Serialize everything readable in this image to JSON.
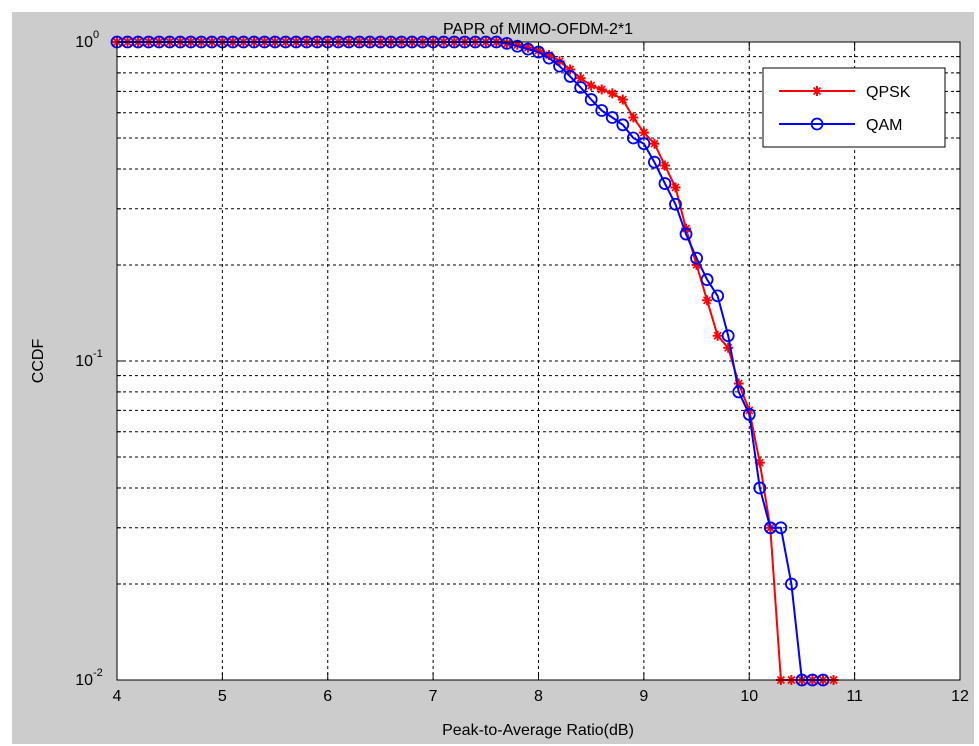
{
  "chart_data": {
    "type": "line",
    "title": "PAPR of MIMO-OFDM-2*1",
    "xlabel": "Peak-to-Average Ratio(dB)",
    "ylabel": "CCDF",
    "xlim": [
      4,
      12
    ],
    "ylim": [
      0.01,
      1
    ],
    "yscale": "log",
    "grid": true,
    "legend_position": "top-right",
    "x_ticks": [
      "4",
      "5",
      "6",
      "7",
      "8",
      "9",
      "10",
      "11",
      "12"
    ],
    "y_ticks": [
      {
        "base": "10",
        "exp": "0",
        "value": 1
      },
      {
        "base": "10",
        "exp": "-1",
        "value": 0.1
      },
      {
        "base": "10",
        "exp": "-2",
        "value": 0.01
      }
    ],
    "series": [
      {
        "name": "QPSK",
        "color": "#ff0000",
        "marker": "star",
        "points": [
          [
            4.0,
            1
          ],
          [
            4.1,
            1
          ],
          [
            4.2,
            1
          ],
          [
            4.3,
            1
          ],
          [
            4.4,
            1
          ],
          [
            4.5,
            1
          ],
          [
            4.6,
            1
          ],
          [
            4.7,
            1
          ],
          [
            4.8,
            1
          ],
          [
            4.9,
            1
          ],
          [
            5.0,
            1
          ],
          [
            5.1,
            1
          ],
          [
            5.2,
            1
          ],
          [
            5.3,
            1
          ],
          [
            5.4,
            1
          ],
          [
            5.5,
            1
          ],
          [
            5.6,
            1
          ],
          [
            5.7,
            1
          ],
          [
            5.8,
            1
          ],
          [
            5.9,
            1
          ],
          [
            6.0,
            1
          ],
          [
            6.1,
            1
          ],
          [
            6.2,
            1
          ],
          [
            6.3,
            1
          ],
          [
            6.4,
            1
          ],
          [
            6.5,
            1
          ],
          [
            6.6,
            1
          ],
          [
            6.7,
            1
          ],
          [
            6.8,
            1
          ],
          [
            6.9,
            1
          ],
          [
            7.0,
            1
          ],
          [
            7.1,
            1
          ],
          [
            7.2,
            1
          ],
          [
            7.3,
            1
          ],
          [
            7.4,
            1
          ],
          [
            7.5,
            1
          ],
          [
            7.6,
            1
          ],
          [
            7.7,
            0.99
          ],
          [
            7.8,
            0.98
          ],
          [
            7.9,
            0.96
          ],
          [
            8.0,
            0.94
          ],
          [
            8.1,
            0.91
          ],
          [
            8.2,
            0.87
          ],
          [
            8.3,
            0.82
          ],
          [
            8.4,
            0.77
          ],
          [
            8.5,
            0.73
          ],
          [
            8.6,
            0.71
          ],
          [
            8.7,
            0.69
          ],
          [
            8.8,
            0.66
          ],
          [
            8.9,
            0.58
          ],
          [
            9.0,
            0.52
          ],
          [
            9.1,
            0.48
          ],
          [
            9.2,
            0.41
          ],
          [
            9.3,
            0.35
          ],
          [
            9.4,
            0.26
          ],
          [
            9.5,
            0.2
          ],
          [
            9.6,
            0.155
          ],
          [
            9.7,
            0.12
          ],
          [
            9.8,
            0.11
          ],
          [
            9.9,
            0.085
          ],
          [
            10.0,
            0.07
          ],
          [
            10.1,
            0.048
          ],
          [
            10.2,
            0.03
          ],
          [
            10.3,
            0.01
          ],
          [
            10.4,
            0.01
          ],
          [
            10.5,
            0.01
          ],
          [
            10.6,
            0.01
          ],
          [
            10.7,
            0.01
          ],
          [
            10.8,
            0.01
          ]
        ]
      },
      {
        "name": "QAM",
        "color": "#0000ff",
        "marker": "circle",
        "points": [
          [
            4.0,
            1
          ],
          [
            4.1,
            1
          ],
          [
            4.2,
            1
          ],
          [
            4.3,
            1
          ],
          [
            4.4,
            1
          ],
          [
            4.5,
            1
          ],
          [
            4.6,
            1
          ],
          [
            4.7,
            1
          ],
          [
            4.8,
            1
          ],
          [
            4.9,
            1
          ],
          [
            5.0,
            1
          ],
          [
            5.1,
            1
          ],
          [
            5.2,
            1
          ],
          [
            5.3,
            1
          ],
          [
            5.4,
            1
          ],
          [
            5.5,
            1
          ],
          [
            5.6,
            1
          ],
          [
            5.7,
            1
          ],
          [
            5.8,
            1
          ],
          [
            5.9,
            1
          ],
          [
            6.0,
            1
          ],
          [
            6.1,
            1
          ],
          [
            6.2,
            1
          ],
          [
            6.3,
            1
          ],
          [
            6.4,
            1
          ],
          [
            6.5,
            1
          ],
          [
            6.6,
            1
          ],
          [
            6.7,
            1
          ],
          [
            6.8,
            1
          ],
          [
            6.9,
            1
          ],
          [
            7.0,
            1
          ],
          [
            7.1,
            1
          ],
          [
            7.2,
            1
          ],
          [
            7.3,
            1
          ],
          [
            7.4,
            1
          ],
          [
            7.5,
            1
          ],
          [
            7.6,
            1
          ],
          [
            7.7,
            0.99
          ],
          [
            7.8,
            0.97
          ],
          [
            7.9,
            0.95
          ],
          [
            8.0,
            0.93
          ],
          [
            8.1,
            0.89
          ],
          [
            8.2,
            0.84
          ],
          [
            8.3,
            0.78
          ],
          [
            8.4,
            0.72
          ],
          [
            8.5,
            0.66
          ],
          [
            8.6,
            0.61
          ],
          [
            8.7,
            0.58
          ],
          [
            8.8,
            0.55
          ],
          [
            8.9,
            0.5
          ],
          [
            9.0,
            0.48
          ],
          [
            9.1,
            0.42
          ],
          [
            9.2,
            0.36
          ],
          [
            9.3,
            0.31
          ],
          [
            9.4,
            0.25
          ],
          [
            9.5,
            0.21
          ],
          [
            9.6,
            0.18
          ],
          [
            9.7,
            0.16
          ],
          [
            9.8,
            0.12
          ],
          [
            9.9,
            0.08
          ],
          [
            10.0,
            0.068
          ],
          [
            10.1,
            0.04
          ],
          [
            10.2,
            0.03
          ],
          [
            10.3,
            0.03
          ],
          [
            10.4,
            0.02
          ],
          [
            10.5,
            0.01
          ],
          [
            10.6,
            0.01
          ],
          [
            10.7,
            0.01
          ]
        ]
      }
    ]
  }
}
